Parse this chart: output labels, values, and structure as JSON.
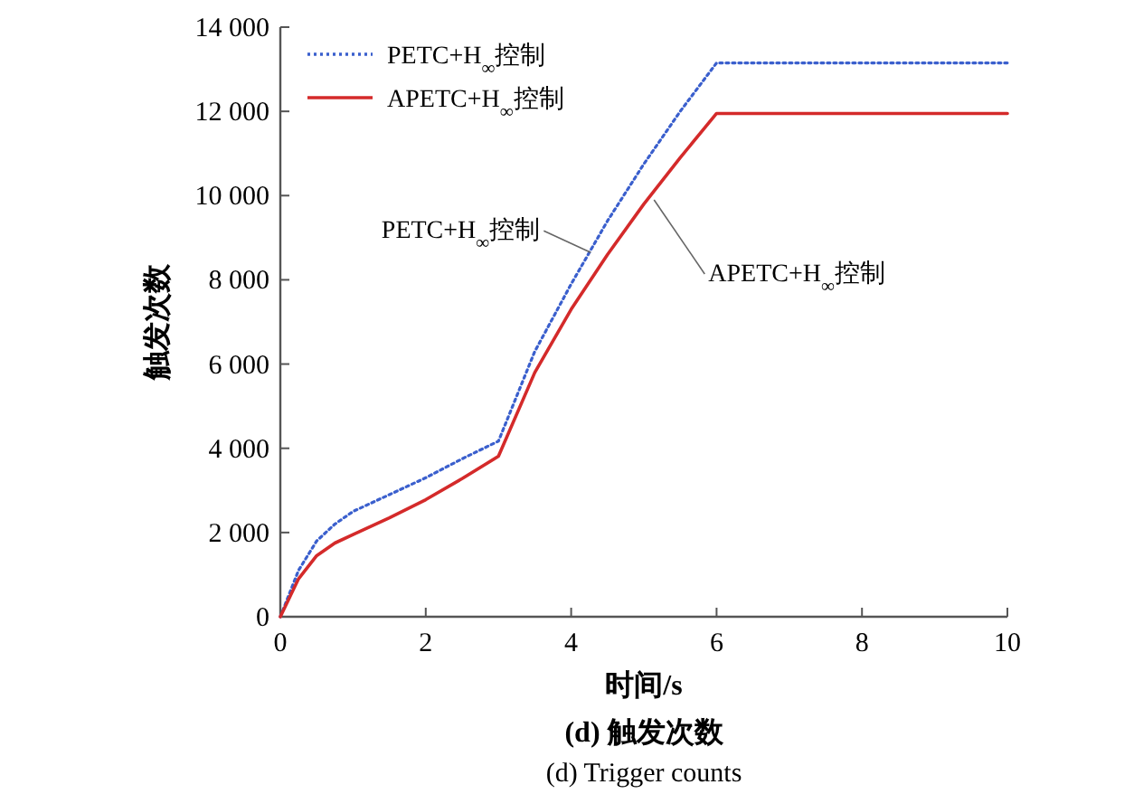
{
  "chart_data": {
    "type": "line",
    "xlabel": "时间/s",
    "ylabel": "触发次数",
    "x": [
      0,
      0.25,
      0.5,
      0.75,
      1,
      1.5,
      2,
      2.5,
      3,
      3.5,
      4,
      4.5,
      5,
      5.5,
      6,
      10
    ],
    "series": [
      {
        "name": "PETC+H$_{∞}$控制",
        "color": "#3a5fcd",
        "line_style": "dotted",
        "values": [
          0,
          1100,
          1800,
          2200,
          2500,
          2900,
          3300,
          3750,
          4170,
          6300,
          7900,
          9400,
          10750,
          12000,
          13150,
          13150
        ]
      },
      {
        "name": "APETC+H$_{∞}$控制",
        "color": "#d42a2a",
        "line_style": "solid",
        "values": [
          0,
          900,
          1450,
          1750,
          1950,
          2350,
          2780,
          3280,
          3810,
          5800,
          7300,
          8600,
          9800,
          10900,
          11950,
          11950
        ]
      }
    ],
    "xlim": [
      0,
      10
    ],
    "ylim": [
      0,
      14000
    ],
    "xticks": [
      0,
      2,
      4,
      6,
      8,
      10
    ],
    "yticks": [
      0,
      {
        "value": 2000,
        "label": "2 000"
      },
      {
        "value": 4000,
        "label": "4 000"
      },
      {
        "value": 6000,
        "label": "6 000"
      },
      {
        "value": 8000,
        "label": "8 000"
      },
      {
        "value": 10000,
        "label": "10 000"
      },
      {
        "value": 12000,
        "label": "12 000"
      },
      {
        "value": 14000,
        "label": "14 000"
      }
    ],
    "grid": false,
    "legend": "top left",
    "marker": "none",
    "annotations": [
      {
        "text": "PETC+H$_{∞}$控制",
        "x": 4.27,
        "y": 8650
      },
      {
        "text": "APETC+H$_{∞}$控制",
        "x": 5.14,
        "y": 9900
      },
      "(d) 触发次数",
      "(d) Trigger counts"
    ]
  }
}
